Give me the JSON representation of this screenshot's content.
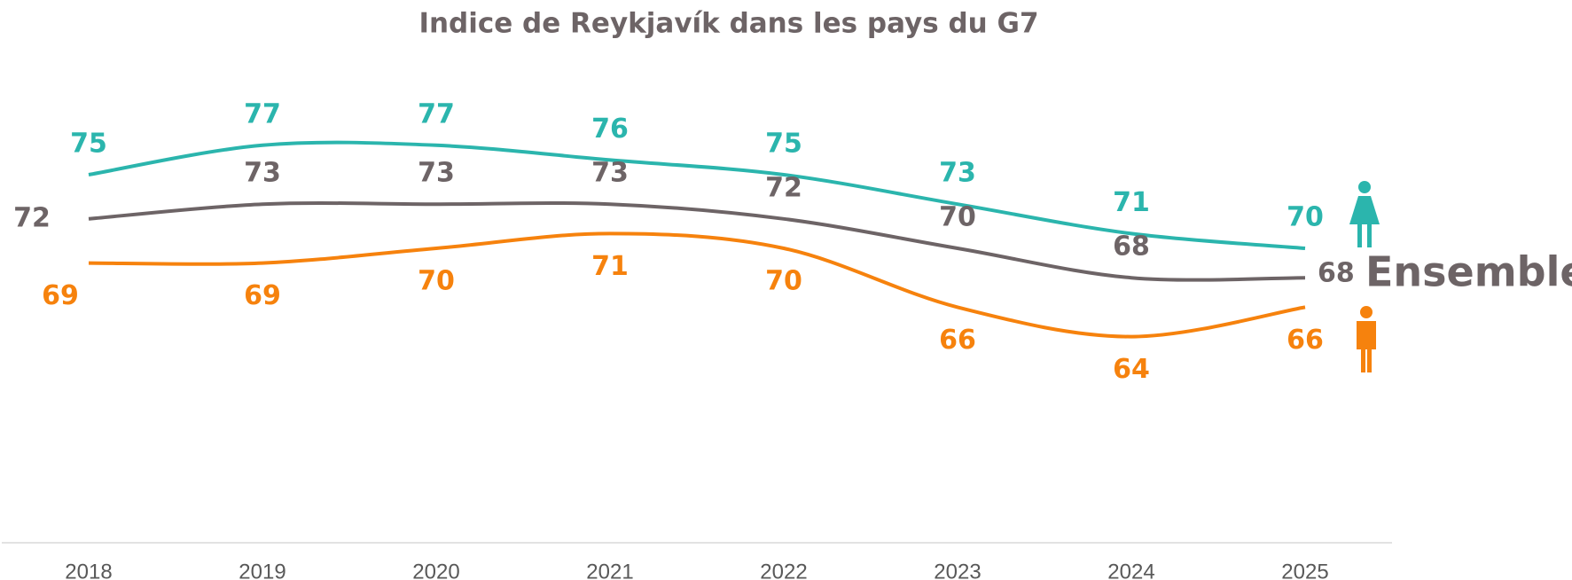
{
  "chart_data": {
    "type": "line",
    "title": "Indice de Reykjavík dans les pays du G7",
    "categories": [
      "2018",
      "2019",
      "2020",
      "2021",
      "2022",
      "2023",
      "2024",
      "2025"
    ],
    "series": [
      {
        "color": "#2bb5ad",
        "values": [
          75,
          77,
          77,
          76,
          75,
          73,
          71,
          70
        ]
      },
      {
        "name": "Ensemble",
        "color": "#6d6466",
        "values": [
          72,
          73,
          73,
          73,
          72,
          70,
          68,
          68
        ]
      },
      {
        "color": "#f6820d",
        "values": [
          69,
          69,
          70,
          71,
          70,
          66,
          64,
          66
        ]
      }
    ],
    "ylim": [
      50,
      80
    ]
  }
}
